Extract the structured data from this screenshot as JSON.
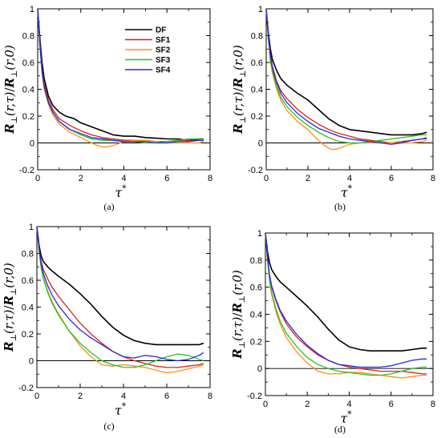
{
  "colors": {
    "DF": "#000000",
    "SF1": "#d62020",
    "SF2": "#ff8c1a",
    "SF3": "#22c322",
    "SF4": "#2828e0",
    "zero_line": "#000000"
  },
  "axis_text": {
    "xlabel_main": "τ",
    "xlabel_sup": "*",
    "ylabel_main": "R",
    "ylabel_sub": "⊥",
    "ylabel_args1": "(r,τ)",
    "ylabel_slash": "/",
    "ylabel_args2": "(r,0)"
  },
  "chart_data": [
    {
      "type": "line",
      "caption": "(a)",
      "xlim": [
        0,
        8
      ],
      "ylim": [
        -0.2,
        1
      ],
      "xticks": [
        0,
        2,
        4,
        6,
        8
      ],
      "yticks": [
        -0.2,
        0,
        0.2,
        0.4,
        0.6,
        0.8,
        1
      ],
      "ytick_labels": [
        "-0.2",
        "0",
        "0.2",
        "0.4",
        "0.6",
        "0.8",
        "1"
      ],
      "legend_position": "top-right",
      "series": [
        {
          "name": "DF",
          "x": [
            0,
            0.1,
            0.2,
            0.3,
            0.5,
            0.7,
            1,
            1.3,
            1.7,
            2,
            2.5,
            3,
            3.5,
            4,
            4.5,
            5,
            5.5,
            6,
            6.5,
            7,
            7.5,
            7.7
          ],
          "y": [
            1,
            0.78,
            0.6,
            0.48,
            0.35,
            0.28,
            0.23,
            0.2,
            0.18,
            0.15,
            0.12,
            0.09,
            0.06,
            0.05,
            0.05,
            0.04,
            0.035,
            0.03,
            0.03,
            0.02,
            0.03,
            0.03
          ]
        },
        {
          "name": "SF1",
          "x": [
            0,
            0.1,
            0.2,
            0.3,
            0.5,
            0.7,
            1,
            1.5,
            2,
            2.5,
            3,
            3.5,
            4,
            4.5,
            5,
            5.5,
            6,
            6.5,
            7,
            7.5,
            7.7
          ],
          "y": [
            1,
            0.75,
            0.55,
            0.44,
            0.32,
            0.25,
            0.18,
            0.13,
            0.09,
            0.06,
            0.04,
            0.03,
            0.02,
            0.02,
            0.02,
            0.01,
            0.01,
            0.02,
            0.02,
            0.02,
            0.02
          ]
        },
        {
          "name": "SF2",
          "x": [
            0,
            0.1,
            0.2,
            0.3,
            0.5,
            0.7,
            1,
            1.5,
            2,
            2.5,
            2.8,
            3,
            3.2,
            3.5,
            4,
            4.5,
            5,
            5.5,
            6,
            6.5,
            7,
            7.5,
            7.7
          ],
          "y": [
            1,
            0.73,
            0.52,
            0.4,
            0.29,
            0.21,
            0.14,
            0.08,
            0.04,
            0.0,
            -0.02,
            -0.03,
            -0.03,
            -0.02,
            0.01,
            0.02,
            0.02,
            0.01,
            0.0,
            0.0,
            0.0,
            0.0,
            0.01
          ]
        },
        {
          "name": "SF3",
          "x": [
            0,
            0.1,
            0.2,
            0.3,
            0.5,
            0.7,
            1,
            1.5,
            2,
            2.5,
            3,
            3.5,
            4,
            4.5,
            5,
            5.5,
            6,
            6.5,
            7,
            7.5,
            7.7
          ],
          "y": [
            1,
            0.74,
            0.53,
            0.42,
            0.3,
            0.23,
            0.16,
            0.1,
            0.06,
            0.03,
            0.02,
            0.02,
            0.01,
            0.01,
            0.0,
            0.0,
            0.01,
            0.02,
            0.03,
            0.03,
            0.03
          ]
        },
        {
          "name": "SF4",
          "x": [
            0,
            0.1,
            0.2,
            0.3,
            0.5,
            0.7,
            1,
            1.5,
            2,
            2.5,
            3,
            3.5,
            4,
            4.5,
            5,
            5.5,
            6,
            6.5,
            7,
            7.5,
            7.7
          ],
          "y": [
            1,
            0.74,
            0.54,
            0.42,
            0.3,
            0.23,
            0.16,
            0.1,
            0.07,
            0.04,
            0.03,
            0.02,
            0.01,
            0.01,
            0.01,
            0.0,
            0.0,
            0.01,
            0.01,
            0.02,
            0.02
          ]
        }
      ]
    },
    {
      "type": "line",
      "caption": "(b)",
      "xlim": [
        0,
        8
      ],
      "ylim": [
        -0.2,
        1
      ],
      "xticks": [
        0,
        2,
        4,
        6,
        8
      ],
      "yticks": [
        -0.2,
        0,
        0.2,
        0.4,
        0.6,
        0.8,
        1
      ],
      "ytick_labels": [
        "-0.2",
        "0",
        "0.2",
        "0.4",
        "0.6",
        "0.8",
        "1"
      ],
      "series": [
        {
          "name": "DF",
          "x": [
            0,
            0.1,
            0.2,
            0.3,
            0.5,
            0.7,
            1,
            1.5,
            2,
            2.5,
            3,
            3.5,
            4,
            4.5,
            5,
            5.5,
            6,
            6.5,
            7,
            7.5,
            7.7
          ],
          "y": [
            1,
            0.82,
            0.7,
            0.62,
            0.54,
            0.48,
            0.43,
            0.37,
            0.32,
            0.25,
            0.18,
            0.13,
            0.1,
            0.09,
            0.08,
            0.07,
            0.06,
            0.06,
            0.06,
            0.07,
            0.08
          ]
        },
        {
          "name": "SF1",
          "x": [
            0,
            0.1,
            0.2,
            0.3,
            0.5,
            0.7,
            1,
            1.5,
            2,
            2.5,
            3,
            3.5,
            4,
            4.5,
            5,
            5.5,
            6,
            6.5,
            7,
            7.5,
            7.7
          ],
          "y": [
            1,
            0.8,
            0.66,
            0.57,
            0.46,
            0.39,
            0.33,
            0.25,
            0.19,
            0.14,
            0.1,
            0.07,
            0.05,
            0.03,
            0.02,
            0.01,
            0.0,
            0.01,
            0.02,
            0.03,
            0.03
          ]
        },
        {
          "name": "SF2",
          "x": [
            0,
            0.1,
            0.2,
            0.3,
            0.5,
            0.7,
            1,
            1.5,
            2,
            2.5,
            2.8,
            3,
            3.2,
            3.5,
            4,
            4.5,
            5,
            5.5,
            6,
            6.5,
            7,
            7.5,
            7.7
          ],
          "y": [
            1,
            0.78,
            0.61,
            0.52,
            0.4,
            0.32,
            0.24,
            0.16,
            0.1,
            0.02,
            -0.02,
            -0.04,
            -0.05,
            -0.04,
            -0.01,
            0.0,
            0.0,
            0.0,
            0.0,
            0.0,
            0.0,
            0.01,
            0.02
          ]
        },
        {
          "name": "SF3",
          "x": [
            0,
            0.1,
            0.2,
            0.3,
            0.5,
            0.7,
            1,
            1.5,
            2,
            2.5,
            3,
            3.5,
            4,
            4.5,
            5,
            5.5,
            6,
            6.5,
            7,
            7.5,
            7.7
          ],
          "y": [
            1,
            0.79,
            0.63,
            0.54,
            0.42,
            0.34,
            0.27,
            0.19,
            0.13,
            0.08,
            0.04,
            0.01,
            0.0,
            0.0,
            0.01,
            0.02,
            0.03,
            0.04,
            0.05,
            0.06,
            0.06
          ]
        },
        {
          "name": "SF4",
          "x": [
            0,
            0.1,
            0.2,
            0.3,
            0.5,
            0.7,
            1,
            1.5,
            2,
            2.5,
            3,
            3.5,
            4,
            4.5,
            5,
            5.5,
            6,
            6.5,
            7,
            7.5,
            7.7
          ],
          "y": [
            1,
            0.8,
            0.65,
            0.56,
            0.45,
            0.37,
            0.3,
            0.22,
            0.16,
            0.11,
            0.08,
            0.05,
            0.03,
            0.02,
            0.01,
            0.0,
            -0.01,
            0.0,
            0.02,
            0.03,
            0.04
          ]
        }
      ]
    },
    {
      "type": "line",
      "caption": "(c)",
      "xlim": [
        0,
        8
      ],
      "ylim": [
        -0.2,
        1
      ],
      "xticks": [
        0,
        2,
        4,
        6,
        8
      ],
      "yticks": [
        -0.2,
        0,
        0.2,
        0.4,
        0.6,
        0.8,
        1
      ],
      "ytick_labels": [
        "-0.2",
        "0",
        "0.2",
        "0.4",
        "0.6",
        "0.8",
        "1"
      ],
      "series": [
        {
          "name": "DF",
          "x": [
            0,
            0.1,
            0.2,
            0.3,
            0.5,
            0.7,
            1,
            1.5,
            2,
            2.5,
            3,
            3.5,
            4,
            4.5,
            5,
            5.5,
            6,
            6.5,
            7,
            7.5,
            7.7
          ],
          "y": [
            1,
            0.86,
            0.78,
            0.74,
            0.7,
            0.67,
            0.63,
            0.57,
            0.5,
            0.42,
            0.33,
            0.25,
            0.19,
            0.15,
            0.13,
            0.12,
            0.12,
            0.12,
            0.12,
            0.12,
            0.13
          ]
        },
        {
          "name": "SF1",
          "x": [
            0,
            0.1,
            0.2,
            0.3,
            0.5,
            0.7,
            1,
            1.5,
            2,
            2.5,
            3,
            3.5,
            4,
            4.5,
            5,
            5.5,
            6,
            6.5,
            7,
            7.5,
            7.7
          ],
          "y": [
            1,
            0.84,
            0.74,
            0.68,
            0.61,
            0.55,
            0.48,
            0.38,
            0.28,
            0.2,
            0.13,
            0.07,
            0.03,
            0.0,
            -0.02,
            -0.04,
            -0.05,
            -0.05,
            -0.04,
            -0.03,
            -0.02
          ]
        },
        {
          "name": "SF2",
          "x": [
            0,
            0.1,
            0.2,
            0.3,
            0.5,
            0.7,
            1,
            1.5,
            2,
            2.5,
            3,
            3.5,
            4,
            4.5,
            5,
            5.5,
            6,
            6.5,
            7,
            7.5,
            7.7
          ],
          "y": [
            1,
            0.82,
            0.7,
            0.62,
            0.52,
            0.44,
            0.35,
            0.22,
            0.11,
            0.03,
            -0.03,
            -0.04,
            -0.03,
            -0.04,
            -0.05,
            -0.07,
            -0.09,
            -0.08,
            -0.06,
            -0.04,
            -0.03
          ]
        },
        {
          "name": "SF3",
          "x": [
            0,
            0.1,
            0.2,
            0.3,
            0.5,
            0.7,
            1,
            1.5,
            2,
            2.5,
            3,
            3.5,
            4,
            4.5,
            5,
            5.5,
            6,
            6.5,
            7,
            7.5,
            7.7
          ],
          "y": [
            1,
            0.82,
            0.69,
            0.61,
            0.51,
            0.43,
            0.34,
            0.22,
            0.13,
            0.06,
            0.0,
            -0.03,
            -0.05,
            -0.05,
            -0.03,
            0.0,
            0.03,
            0.05,
            0.04,
            0.01,
            0.0
          ]
        },
        {
          "name": "SF4",
          "x": [
            0,
            0.1,
            0.2,
            0.3,
            0.5,
            0.7,
            1,
            1.5,
            2,
            2.5,
            3,
            3.5,
            4,
            4.5,
            5,
            5.5,
            6,
            6.5,
            7,
            7.5,
            7.7
          ],
          "y": [
            1,
            0.84,
            0.72,
            0.65,
            0.56,
            0.49,
            0.41,
            0.31,
            0.23,
            0.17,
            0.12,
            0.07,
            0.03,
            0.02,
            0.04,
            0.03,
            0.01,
            0.0,
            0.01,
            0.04,
            0.06
          ]
        }
      ]
    },
    {
      "type": "line",
      "caption": "(d)",
      "xlim": [
        0,
        8
      ],
      "ylim": [
        -0.2,
        1
      ],
      "xticks": [
        0,
        2,
        4,
        6,
        8
      ],
      "yticks": [
        -0.2,
        0,
        0.2,
        0.4,
        0.6,
        0.8,
        1
      ],
      "ytick_labels": [
        "-0.2",
        "0",
        "0.2",
        "0.4",
        "0.6",
        "0.8",
        "1"
      ],
      "series": [
        {
          "name": "DF",
          "x": [
            0,
            0.1,
            0.2,
            0.3,
            0.5,
            0.7,
            1,
            1.5,
            2,
            2.5,
            3,
            3.5,
            4,
            4.5,
            5,
            5.5,
            6,
            6.5,
            7,
            7.5,
            7.7
          ],
          "y": [
            1,
            0.86,
            0.78,
            0.73,
            0.68,
            0.64,
            0.6,
            0.53,
            0.46,
            0.38,
            0.29,
            0.21,
            0.16,
            0.14,
            0.13,
            0.13,
            0.13,
            0.13,
            0.14,
            0.15,
            0.15
          ]
        },
        {
          "name": "SF1",
          "x": [
            0,
            0.1,
            0.2,
            0.3,
            0.5,
            0.7,
            1,
            1.5,
            2,
            2.5,
            3,
            3.5,
            4,
            4.5,
            5,
            5.5,
            6,
            6.5,
            7,
            7.5,
            7.7
          ],
          "y": [
            1,
            0.82,
            0.68,
            0.6,
            0.5,
            0.42,
            0.33,
            0.23,
            0.16,
            0.1,
            0.06,
            0.03,
            0.01,
            0.0,
            -0.01,
            -0.02,
            -0.02,
            -0.02,
            -0.03,
            -0.04,
            -0.04
          ]
        },
        {
          "name": "SF2",
          "x": [
            0,
            0.1,
            0.2,
            0.3,
            0.5,
            0.7,
            1,
            1.5,
            2,
            2.5,
            3,
            3.5,
            4,
            4.5,
            5,
            5.5,
            6,
            6.5,
            7,
            7.5,
            7.7
          ],
          "y": [
            1,
            0.8,
            0.64,
            0.55,
            0.42,
            0.33,
            0.23,
            0.12,
            0.04,
            -0.02,
            -0.04,
            -0.04,
            -0.03,
            -0.03,
            -0.04,
            -0.05,
            -0.06,
            -0.07,
            -0.06,
            -0.05,
            -0.05
          ]
        },
        {
          "name": "SF3",
          "x": [
            0,
            0.1,
            0.2,
            0.3,
            0.5,
            0.7,
            1,
            1.5,
            2,
            2.5,
            3,
            3.5,
            4,
            4.5,
            5,
            5.5,
            6,
            6.5,
            7,
            7.5,
            7.7
          ],
          "y": [
            1,
            0.81,
            0.65,
            0.56,
            0.44,
            0.35,
            0.26,
            0.16,
            0.08,
            0.03,
            0.0,
            -0.02,
            -0.03,
            -0.04,
            -0.05,
            -0.05,
            -0.04,
            -0.02,
            0.0,
            0.01,
            0.01
          ]
        },
        {
          "name": "SF4",
          "x": [
            0,
            0.1,
            0.2,
            0.3,
            0.5,
            0.7,
            1,
            1.5,
            2,
            2.5,
            3,
            3.5,
            4,
            4.5,
            5,
            5.5,
            6,
            6.5,
            7,
            7.5,
            7.7
          ],
          "y": [
            1,
            0.82,
            0.69,
            0.61,
            0.51,
            0.43,
            0.35,
            0.25,
            0.17,
            0.11,
            0.06,
            0.03,
            0.02,
            0.01,
            0.01,
            0.01,
            0.02,
            0.04,
            0.06,
            0.07,
            0.07
          ]
        }
      ]
    }
  ]
}
